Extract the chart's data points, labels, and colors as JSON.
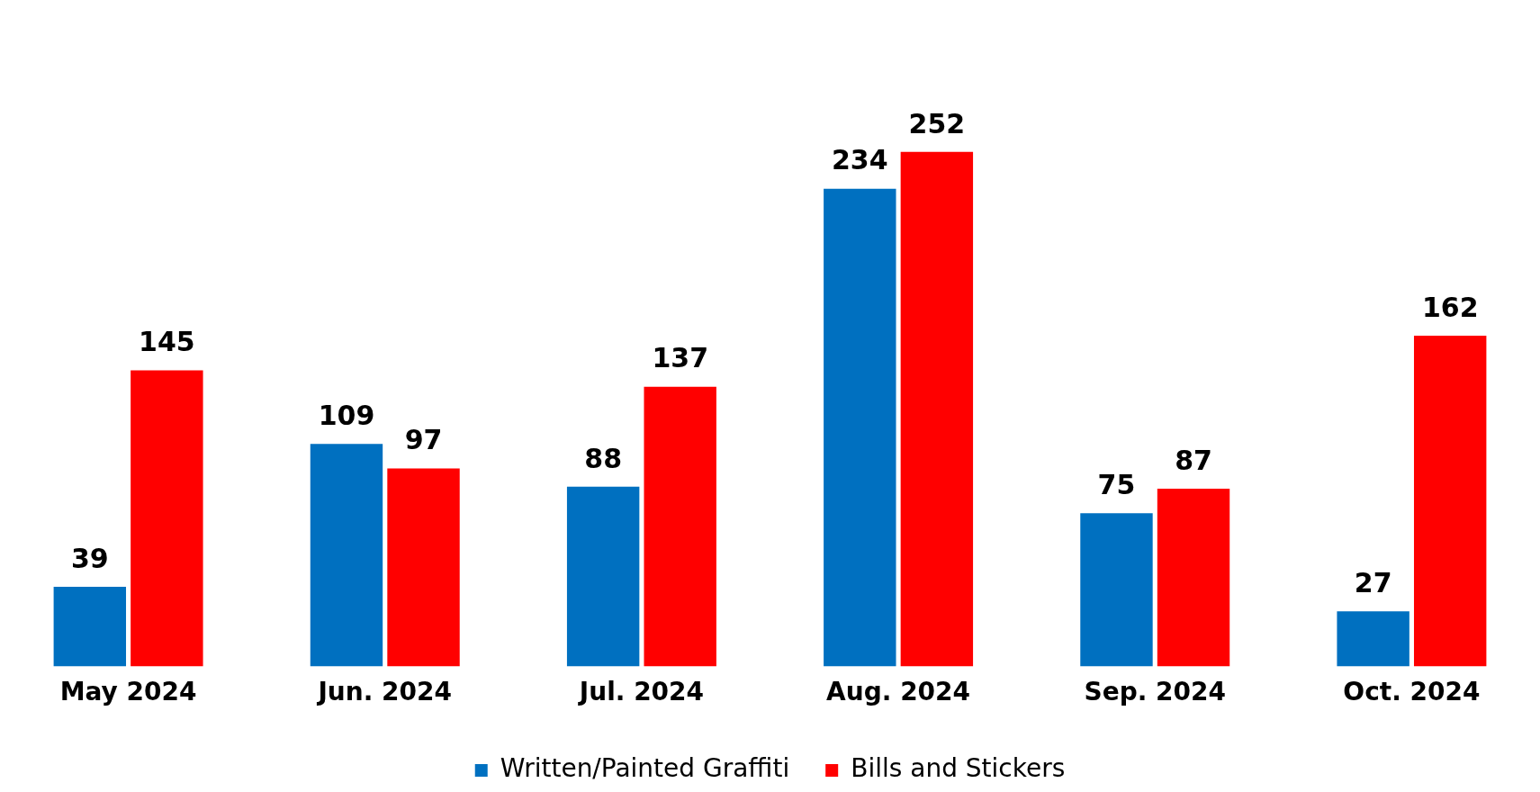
{
  "chart_data": {
    "type": "bar",
    "categories": [
      "May 2024",
      "Jun. 2024",
      "Jul. 2024",
      "Aug. 2024",
      "Sep. 2024",
      "Oct. 2024"
    ],
    "series": [
      {
        "name": "Written/Painted Graffiti",
        "color": "#0070c0",
        "values": [
          39,
          109,
          88,
          234,
          75,
          27
        ]
      },
      {
        "name": "Bills and Stickers",
        "color": "#ff0000",
        "values": [
          145,
          97,
          137,
          252,
          87,
          162
        ]
      }
    ],
    "data_labels": true,
    "grid": false,
    "legend": "bottom"
  }
}
